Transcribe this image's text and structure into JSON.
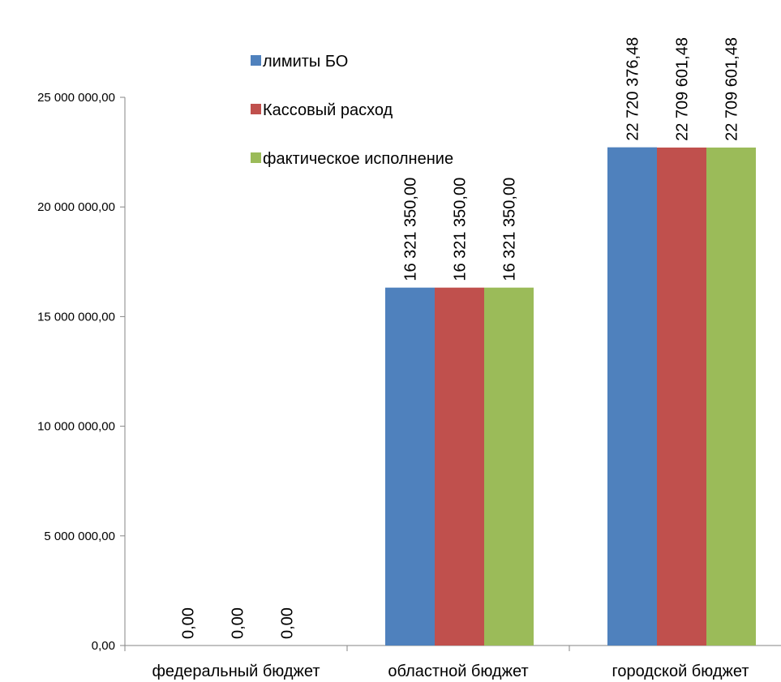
{
  "chart_data": {
    "type": "bar",
    "categories": [
      "федеральный  бюджет",
      "областной бюджет",
      "городской бюджет"
    ],
    "series": [
      {
        "name": "лимиты БО",
        "color": "#4F81BD",
        "values": [
          0,
          16321350,
          22720376.48
        ],
        "labels": [
          "0,00",
          "16 321 350,00",
          "22 720 376,48"
        ]
      },
      {
        "name": "Кассовый расход",
        "color": "#C0504D",
        "values": [
          0,
          16321350,
          22709601.48
        ],
        "labels": [
          "0,00",
          "16 321 350,00",
          "22 709 601,48"
        ]
      },
      {
        "name": "фактическое исполнение",
        "color": "#9BBB59",
        "values": [
          0,
          16321350,
          22709601.48
        ],
        "labels": [
          "0,00",
          "16 321 350,00",
          "22 709 601,48"
        ]
      }
    ],
    "yticks": [
      {
        "value": 0,
        "label": "0,00"
      },
      {
        "value": 5000000,
        "label": "5 000 000,00"
      },
      {
        "value": 10000000,
        "label": "10 000 000,00"
      },
      {
        "value": 15000000,
        "label": "15 000 000,00"
      },
      {
        "value": 20000000,
        "label": "20 000 000,00"
      },
      {
        "value": 25000000,
        "label": "25 000 000,00"
      }
    ],
    "ylim": [
      0,
      25000000
    ],
    "grid": false,
    "legend_position": "top-center, inside plot",
    "title": "",
    "xlabel": "",
    "ylabel": ""
  }
}
